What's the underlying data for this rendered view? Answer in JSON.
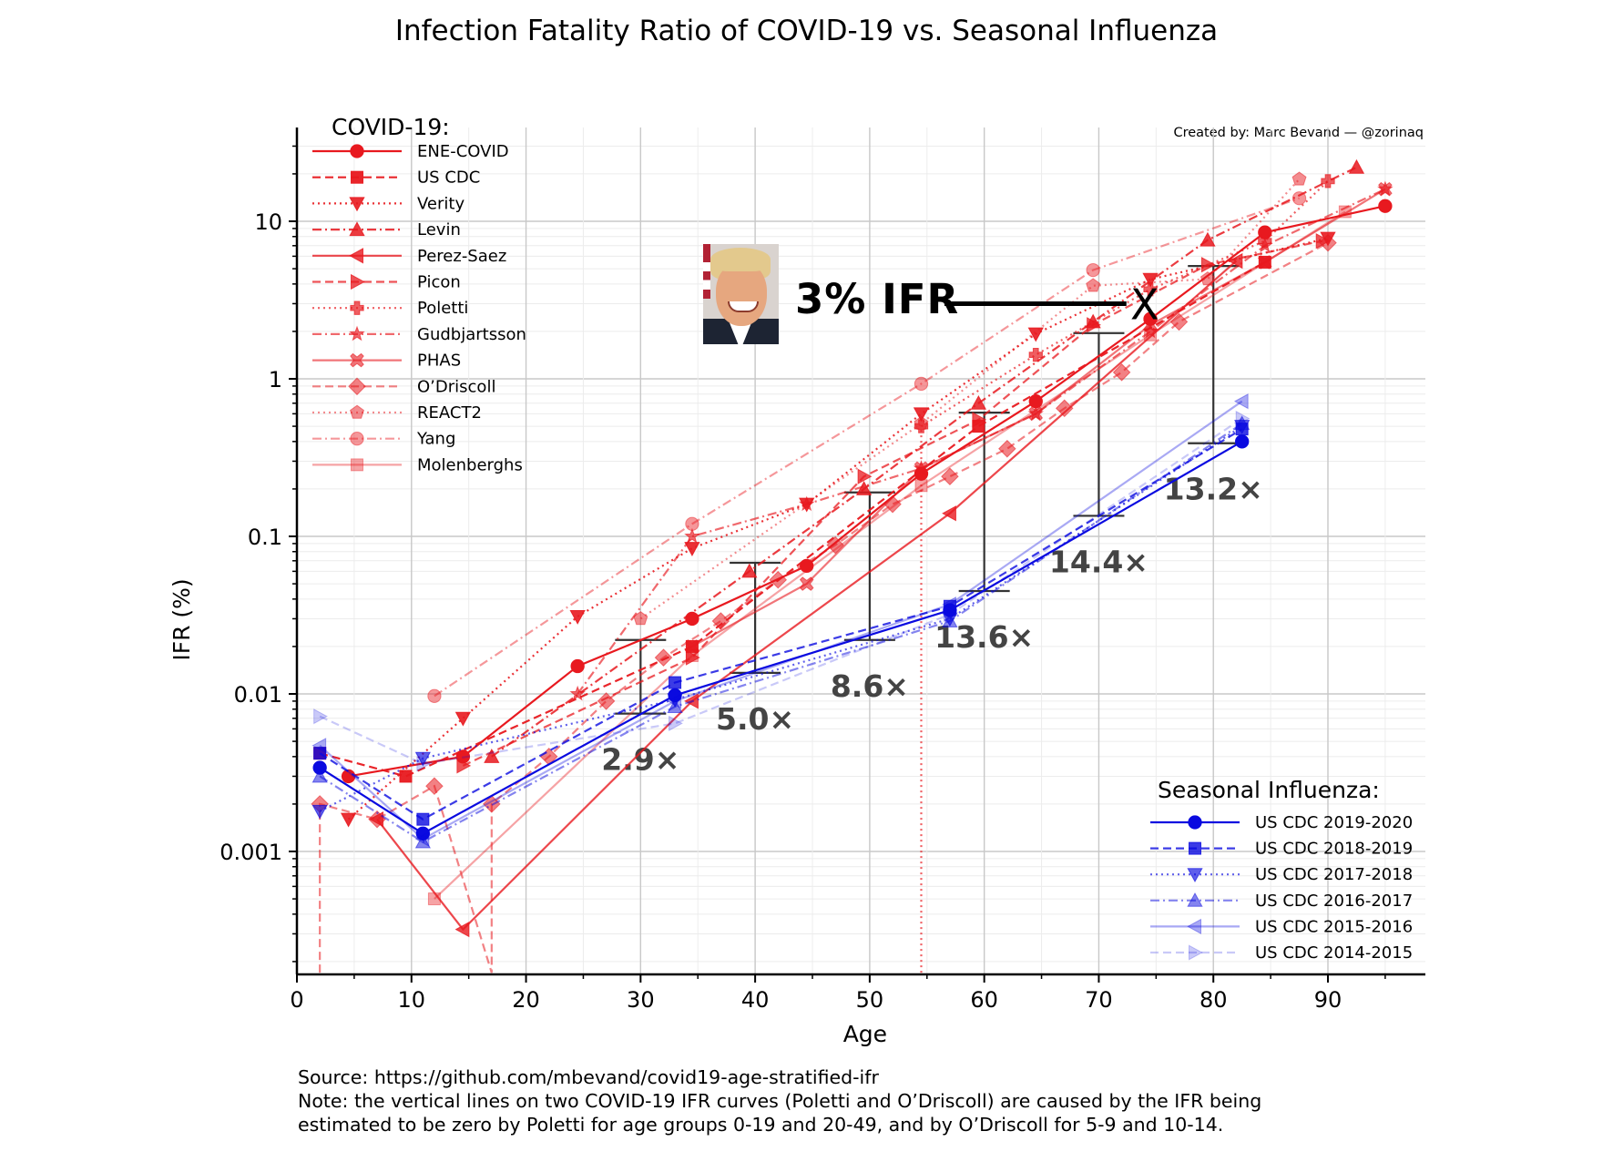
{
  "title": "Infection Fatality Ratio of COVID-19 vs. Seasonal Influenza",
  "credit": "Created by: Marc Bevand — @zorinaq",
  "annotation": {
    "label": "3% IFR",
    "marker": "X",
    "age": 74,
    "value": 3.0,
    "photo": "portrait-photo"
  },
  "footer": {
    "source": "Source: https://github.com/mbevand/covid19-age-stratified-ifr",
    "note_line1": "Note: the vertical lines on two COVID-19 IFR curves (Poletti and O’Driscoll) are caused by the IFR being",
    "note_line2": "estimated to be zero by Poletti for age groups 0-19 and 20-49, and by O’Driscoll for 5-9 and 10-14."
  },
  "chart_data": {
    "type": "line",
    "title": "Infection Fatality Ratio of COVID-19 vs. Seasonal Influenza",
    "xlabel": "Age",
    "ylabel": "IFR (%)",
    "xscale": "linear",
    "yscale": "log",
    "xlim": [
      0,
      99
    ],
    "ylim": [
      0.00017,
      38
    ],
    "xticks": [
      0,
      10,
      20,
      30,
      40,
      50,
      60,
      70,
      80,
      90
    ],
    "yticks": [
      0.001,
      0.01,
      0.1,
      1,
      10
    ],
    "ytick_labels": [
      "0.001",
      "0.01",
      "0.1",
      "1",
      "10"
    ],
    "grid": true,
    "legends": [
      {
        "title": "COVID-19:",
        "placement": "top-left"
      },
      {
        "title": "Seasonal Influenza:",
        "placement": "bottom-right"
      }
    ],
    "series": [
      {
        "group": "COVID-19",
        "name": "ENE-COVID",
        "color": "#e8191f",
        "alpha": 1.0,
        "dash": "solid",
        "marker": "circle",
        "x": [
          4.5,
          14.5,
          24.5,
          34.5,
          44.5,
          54.5,
          64.5,
          74.5,
          84.5,
          95
        ],
        "y": [
          0.003,
          0.004,
          0.015,
          0.03,
          0.065,
          0.25,
          0.72,
          2.4,
          8.5,
          12.5
        ]
      },
      {
        "group": "COVID-19",
        "name": "US CDC",
        "color": "#e8191f",
        "alpha": 0.95,
        "dash": "dashed",
        "marker": "square",
        "x": [
          2,
          9.5,
          34.5,
          59.5,
          84.5
        ],
        "y": [
          0.0042,
          0.003,
          0.02,
          0.5,
          5.5
        ]
      },
      {
        "group": "COVID-19",
        "name": "Verity",
        "color": "#e8191f",
        "alpha": 0.9,
        "dash": "dotted",
        "marker": "triangle-down",
        "x": [
          4.5,
          14.5,
          24.5,
          34.5,
          44.5,
          54.5,
          64.5,
          74.5,
          90
        ],
        "y": [
          0.0016,
          0.007,
          0.031,
          0.084,
          0.16,
          0.6,
          1.93,
          4.28,
          7.8
        ]
      },
      {
        "group": "COVID-19",
        "name": "Levin",
        "color": "#e8191f",
        "alpha": 0.85,
        "dash": "dashdot",
        "marker": "triangle-up",
        "x": [
          17,
          39.5,
          49.5,
          59.5,
          69.5,
          79.5,
          92.5
        ],
        "y": [
          0.004,
          0.06,
          0.2,
          0.7,
          2.3,
          7.6,
          22
        ]
      },
      {
        "group": "COVID-19",
        "name": "Perez-Saez",
        "color": "#e8191f",
        "alpha": 0.8,
        "dash": "solid",
        "marker": "triangle-left",
        "x": [
          7,
          14.5,
          34.5,
          57,
          82
        ],
        "y": [
          0.0016,
          0.00032,
          0.009,
          0.14,
          5.6
        ]
      },
      {
        "group": "COVID-19",
        "name": "Picon",
        "color": "#e8191f",
        "alpha": 0.75,
        "dash": "dashed",
        "marker": "triangle-right",
        "x": [
          14.5,
          34.5,
          49.5,
          59.5,
          69.5,
          79.5,
          89.5
        ],
        "y": [
          0.0035,
          0.017,
          0.24,
          0.55,
          2.2,
          5.3,
          7.5
        ]
      },
      {
        "group": "COVID-19",
        "name": "Poletti",
        "color": "#e8191f",
        "alpha": 0.7,
        "dash": "dotted",
        "marker": "plus-filled",
        "x": [
          54.5,
          54.5,
          64.5,
          74.5,
          84.5,
          90
        ],
        "y": [
          0.00017,
          0.5,
          1.42,
          3.7,
          7.5,
          18
        ]
      },
      {
        "group": "COVID-19",
        "name": "Gudbjartsson",
        "color": "#e8191f",
        "alpha": 0.65,
        "dash": "dashdot",
        "marker": "star",
        "x": [
          24.5,
          34.5,
          44.5,
          54.5,
          64.5,
          74.5,
          84.5,
          95
        ],
        "y": [
          0.01,
          0.1,
          0.16,
          0.27,
          0.6,
          2.0,
          7.0,
          16
        ]
      },
      {
        "group": "COVID-19",
        "name": "PHAS",
        "color": "#e8191f",
        "alpha": 0.6,
        "dash": "solid",
        "marker": "x-filled",
        "x": [
          34.5,
          44.5,
          54.5,
          64.5,
          74.5,
          84.5,
          95
        ],
        "y": [
          0.02,
          0.05,
          0.27,
          0.6,
          2.2,
          5.5,
          16
        ]
      },
      {
        "group": "COVID-19",
        "name": "O’Driscoll",
        "color": "#e8191f",
        "alpha": 0.55,
        "dash": "dashed",
        "marker": "diamond",
        "x": [
          2,
          2,
          7,
          12,
          17,
          17,
          22,
          27,
          32,
          37,
          42,
          47,
          52,
          57,
          62,
          67,
          72,
          77,
          90
        ],
        "y": [
          0.00017,
          0.002,
          0.0016,
          0.0026,
          0.00017,
          0.002,
          0.004,
          0.009,
          0.017,
          0.029,
          0.053,
          0.088,
          0.16,
          0.24,
          0.36,
          0.65,
          1.1,
          2.3,
          7.3
        ]
      },
      {
        "group": "COVID-19",
        "name": "REACT2",
        "color": "#e8191f",
        "alpha": 0.5,
        "dash": "dotted",
        "marker": "pentagon",
        "x": [
          30,
          54.5,
          69.5,
          79.5,
          87.5
        ],
        "y": [
          0.03,
          0.52,
          3.9,
          4.3,
          18.5
        ]
      },
      {
        "group": "COVID-19",
        "name": "Yang",
        "color": "#e8191f",
        "alpha": 0.45,
        "dash": "dashdot",
        "marker": "circle",
        "x": [
          12,
          34.5,
          54.5,
          69.5,
          87.5
        ],
        "y": [
          0.0097,
          0.12,
          0.93,
          4.9,
          14
        ]
      },
      {
        "group": "COVID-19",
        "name": "Molenberghs",
        "color": "#e8191f",
        "alpha": 0.4,
        "dash": "solid",
        "marker": "square",
        "x": [
          12,
          34.5,
          54.5,
          74.5,
          91.5
        ],
        "y": [
          0.0005,
          0.0175,
          0.21,
          1.9,
          11.5
        ]
      },
      {
        "group": "Seasonal Influenza",
        "name": "US CDC 2019-2020",
        "color": "#0a0ae0",
        "alpha": 1.0,
        "dash": "solid",
        "marker": "circle",
        "x": [
          2,
          11,
          33,
          57,
          82.5
        ],
        "y": [
          0.0034,
          0.0013,
          0.0098,
          0.034,
          0.4
        ]
      },
      {
        "group": "Seasonal Influenza",
        "name": "US CDC 2018-2019",
        "color": "#0a0ae0",
        "alpha": 0.8,
        "dash": "dashed",
        "marker": "square",
        "x": [
          2,
          11,
          33,
          57,
          82.5
        ],
        "y": [
          0.0042,
          0.0016,
          0.0118,
          0.036,
          0.48
        ]
      },
      {
        "group": "Seasonal Influenza",
        "name": "US CDC 2017-2018",
        "color": "#0a0ae0",
        "alpha": 0.65,
        "dash": "dotted",
        "marker": "triangle-down",
        "x": [
          2,
          11,
          33,
          57,
          82.5
        ],
        "y": [
          0.0018,
          0.0039,
          0.0092,
          0.03,
          0.5
        ]
      },
      {
        "group": "Seasonal Influenza",
        "name": "US CDC 2016-2017",
        "color": "#0a0ae0",
        "alpha": 0.5,
        "dash": "dashdot",
        "marker": "triangle-up",
        "x": [
          2,
          11,
          33,
          57,
          82.5
        ],
        "y": [
          0.003,
          0.00115,
          0.0083,
          0.029,
          0.52
        ]
      },
      {
        "group": "Seasonal Influenza",
        "name": "US CDC 2015-2016",
        "color": "#0a0ae0",
        "alpha": 0.35,
        "dash": "solid",
        "marker": "triangle-left",
        "x": [
          2,
          11,
          33,
          57,
          82.5
        ],
        "y": [
          0.0047,
          0.0012,
          0.009,
          0.037,
          0.72
        ]
      },
      {
        "group": "Seasonal Influenza",
        "name": "US CDC 2014-2015",
        "color": "#0a0ae0",
        "alpha": 0.22,
        "dash": "dashed",
        "marker": "triangle-right",
        "x": [
          2,
          11,
          33,
          57,
          82.5
        ],
        "y": [
          0.0072,
          0.0036,
          0.0065,
          0.032,
          0.56
        ]
      }
    ],
    "ratio_bars": [
      {
        "age": 30,
        "top": 0.022,
        "bottom": 0.0075,
        "label": "2.9×"
      },
      {
        "age": 40,
        "top": 0.068,
        "bottom": 0.0136,
        "label": "5.0×"
      },
      {
        "age": 50,
        "top": 0.19,
        "bottom": 0.022,
        "label": "8.6×"
      },
      {
        "age": 60,
        "top": 0.61,
        "bottom": 0.045,
        "label": "13.6×"
      },
      {
        "age": 70,
        "top": 1.95,
        "bottom": 0.135,
        "label": "14.4×"
      },
      {
        "age": 80,
        "top": 5.2,
        "bottom": 0.39,
        "label": "13.2×"
      }
    ]
  }
}
